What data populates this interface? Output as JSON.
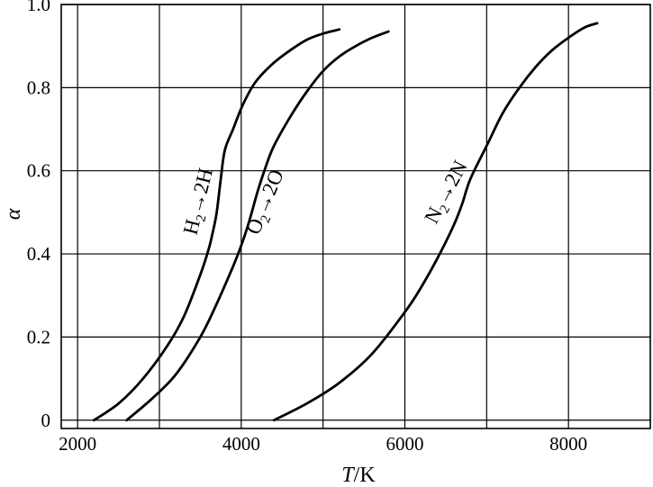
{
  "chart_data": {
    "type": "line",
    "title": "",
    "xlabel_italic": "T",
    "xlabel_rest": "/K",
    "ylabel": "α",
    "xlim": [
      1800,
      9000
    ],
    "ylim": [
      -0.02,
      1.0
    ],
    "x_ticks": [
      2000,
      3000,
      4000,
      5000,
      6000,
      7000,
      8000
    ],
    "x_tick_labels": [
      {
        "value": 2000,
        "label": "2000"
      },
      {
        "value": 4000,
        "label": "4000"
      },
      {
        "value": 6000,
        "label": "6000"
      },
      {
        "value": 8000,
        "label": "8000"
      }
    ],
    "y_ticks": [
      0,
      0.2,
      0.4,
      0.6,
      0.8,
      1.0
    ],
    "y_tick_labels": [
      {
        "value": 0,
        "label": "0"
      },
      {
        "value": 0.2,
        "label": "0.2"
      },
      {
        "value": 0.4,
        "label": "0.4"
      },
      {
        "value": 0.6,
        "label": "0.6"
      },
      {
        "value": 0.8,
        "label": "0.8"
      },
      {
        "value": 1.0,
        "label": "1.0"
      }
    ],
    "grid": true,
    "legend": "none",
    "series": [
      {
        "x": [
          2200,
          2500,
          2800,
          3100,
          3300,
          3500,
          3600,
          3650,
          3700,
          3750,
          3800,
          3900,
          4000,
          4100,
          4200,
          4400,
          4600,
          4800,
          5000,
          5200
        ],
        "y": [
          0,
          0.04,
          0.1,
          0.18,
          0.25,
          0.35,
          0.41,
          0.45,
          0.5,
          0.58,
          0.65,
          0.7,
          0.75,
          0.79,
          0.82,
          0.86,
          0.89,
          0.915,
          0.93,
          0.94
        ]
      },
      {
        "x": [
          2600,
          2900,
          3200,
          3500,
          3700,
          3900,
          4000,
          4100,
          4200,
          4300,
          4400,
          4600,
          4800,
          5000,
          5200,
          5400,
          5600,
          5800
        ],
        "y": [
          0,
          0.05,
          0.11,
          0.2,
          0.28,
          0.37,
          0.42,
          0.48,
          0.55,
          0.61,
          0.66,
          0.73,
          0.79,
          0.84,
          0.875,
          0.9,
          0.92,
          0.935
        ]
      },
      {
        "x": [
          4400,
          4800,
          5200,
          5600,
          6000,
          6200,
          6400,
          6600,
          6700,
          6800,
          7000,
          7200,
          7400,
          7600,
          7800,
          8000,
          8200,
          8350
        ],
        "y": [
          0,
          0.04,
          0.09,
          0.16,
          0.26,
          0.32,
          0.39,
          0.47,
          0.52,
          0.58,
          0.66,
          0.74,
          0.8,
          0.85,
          0.89,
          0.92,
          0.945,
          0.955
        ]
      }
    ],
    "annotations": [
      {
        "base": "H",
        "sub": "2",
        "product": "2H"
      },
      {
        "base": "O",
        "sub": "2",
        "product": "2O"
      },
      {
        "base": "N",
        "sub": "2",
        "product": "2N"
      }
    ]
  }
}
